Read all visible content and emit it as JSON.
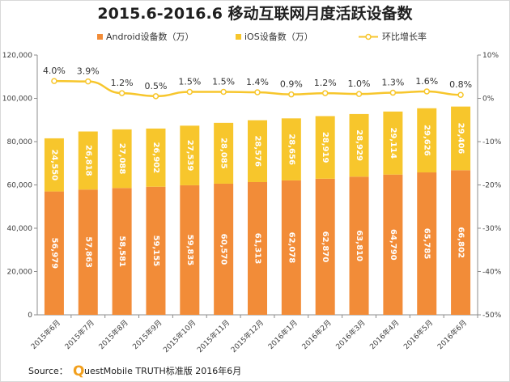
{
  "chart_data": {
    "type": "bar",
    "title": "2015.6-2016.6 移动互联网月度活跃设备数",
    "categories": [
      "2015年6月",
      "2015年7月",
      "2015年8月",
      "2015年9月",
      "2015年10月",
      "2015年11月",
      "2015年12月",
      "2016年1月",
      "2016年2月",
      "2016年3月",
      "2016年4月",
      "2016年5月",
      "2016年6月"
    ],
    "series": [
      {
        "name": "Android设备数（万）",
        "type": "bar",
        "stack": "total",
        "color": "#f28c38",
        "values": [
          56979,
          57863,
          58581,
          59155,
          59835,
          60570,
          61313,
          62078,
          62870,
          63810,
          64790,
          65785,
          66802
        ],
        "labels": [
          "56,979",
          "57,863",
          "58,581",
          "59,155",
          "59,835",
          "60,570",
          "61,313",
          "62,078",
          "62,870",
          "63,810",
          "64,790",
          "65,785",
          "66,802"
        ]
      },
      {
        "name": "iOS设备数（万）",
        "type": "bar",
        "stack": "total",
        "color": "#f7c62c",
        "values": [
          24550,
          26818,
          27088,
          26902,
          27539,
          28085,
          28576,
          28656,
          28919,
          28929,
          29114,
          29626,
          29406
        ],
        "labels": [
          "24,550",
          "26,818",
          "27,088",
          "26,902",
          "27,539",
          "28,085",
          "28,576",
          "28,656",
          "28,919",
          "28,929",
          "29,114",
          "29,626",
          "29,406"
        ]
      },
      {
        "name": "环比增长率",
        "type": "line",
        "axis": "right",
        "color": "#f7c62c",
        "values": [
          4.0,
          3.9,
          1.2,
          0.5,
          1.5,
          1.5,
          1.4,
          0.9,
          1.2,
          1.0,
          1.3,
          1.6,
          0.8
        ],
        "labels": [
          "4.0%",
          "3.9%",
          "1.2%",
          "0.5%",
          "1.5%",
          "1.5%",
          "1.4%",
          "0.9%",
          "1.2%",
          "1.0%",
          "1.3%",
          "1.6%",
          "0.8%"
        ]
      }
    ],
    "ylim": [
      0,
      120000
    ],
    "yticks": [
      "0",
      "20,000",
      "40,000",
      "60,000",
      "80,000",
      "100,000",
      "120,000"
    ],
    "y2lim": [
      -50,
      10
    ],
    "y2ticks": [
      "-50%",
      "-40%",
      "-30%",
      "-20%",
      "-10%",
      "0%",
      "10%"
    ],
    "legend_position": "top",
    "grid": false
  },
  "source": {
    "prefix": "Source：",
    "logo_letter": "Q",
    "text": "uestMobile TRUTH标准版 2016年6月"
  }
}
